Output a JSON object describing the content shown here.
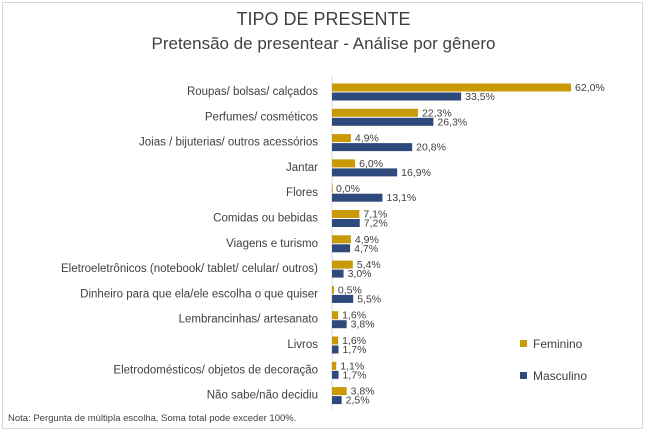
{
  "chart_data": {
    "type": "bar",
    "orientation": "horizontal",
    "title": "TIPO DE PRESENTE",
    "subtitle": "Pretensão de presentear - Análise por gênero",
    "categories": [
      "Roupas/ bolsas/ calçados",
      "Perfumes/ cosméticos",
      "Joias / bijuterias/ outros acessórios",
      "Jantar",
      "Flores",
      "Comidas ou bebidas",
      "Viagens e turismo",
      "Eletroeletrônicos (notebook/ tablet/ celular/ outros)",
      "Dinheiro para que ela/ele escolha o que quiser",
      "Lembrancinhas/ artesanato",
      "Livros",
      "Eletrodomésticos/ objetos de decoração",
      "Não sabe/não decidiu"
    ],
    "series": [
      {
        "name": "Feminino",
        "color": "#c99a06",
        "values": [
          62.0,
          22.3,
          4.9,
          6.0,
          0.0,
          7.1,
          4.9,
          5.4,
          0.5,
          1.6,
          1.6,
          1.1,
          3.8
        ],
        "labels": [
          "62,0%",
          "22,3%",
          "4,9%",
          "6,0%",
          "0,0%",
          "7,1%",
          "4,9%",
          "5,4%",
          "0,5%",
          "1,6%",
          "1,6%",
          "1,1%",
          "3,8%"
        ]
      },
      {
        "name": "Masculino",
        "color": "#2e4a7d",
        "values": [
          33.5,
          26.3,
          20.8,
          16.9,
          13.1,
          7.2,
          4.7,
          3.0,
          5.5,
          3.8,
          1.7,
          1.7,
          2.5
        ],
        "labels": [
          "33,5%",
          "26,3%",
          "20,8%",
          "16,9%",
          "13,1%",
          "7,2%",
          "4,7%",
          "3,0%",
          "5,5%",
          "3,8%",
          "1,7%",
          "1,7%",
          "2,5%"
        ]
      }
    ],
    "legend": "right",
    "grid": false
  },
  "note": "Nota: Pergunta de múltipla escolha. Soma total pode exceder 100%."
}
